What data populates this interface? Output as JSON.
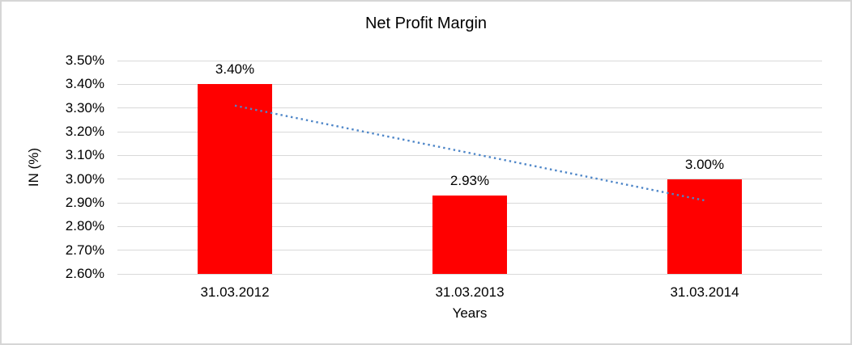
{
  "window": {
    "background": "#ffffff",
    "frame_border_color": "#d6d6d6"
  },
  "chart_data": {
    "type": "bar",
    "title": "Net Profit Margin",
    "xlabel": "Years",
    "ylabel": "IN (%)",
    "categories": [
      "31.03.2012",
      "31.03.2013",
      "31.03.2014"
    ],
    "values": [
      3.4,
      2.93,
      3.0
    ],
    "data_labels": [
      "3.40%",
      "2.93%",
      "3.00%"
    ],
    "ylim": [
      2.6,
      3.5
    ],
    "ytick_step": 0.1,
    "ytick_labels": [
      "3.50%",
      "3.40%",
      "3.30%",
      "3.20%",
      "3.10%",
      "3.00%",
      "2.90%",
      "2.80%",
      "2.70%",
      "2.60%"
    ],
    "grid": "horizontal-on",
    "legend_position": "none",
    "bar_color": "#ff0000",
    "gridline_color": "#d9d9d9",
    "text_color": "#000000",
    "trendline": {
      "type": "linear",
      "style": "dotted",
      "color": "#4e86c8",
      "start_value": 3.31,
      "end_value": 2.91
    }
  }
}
